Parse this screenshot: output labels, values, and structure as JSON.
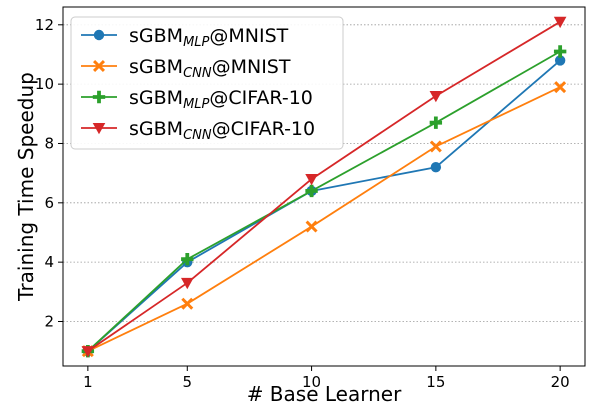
{
  "chart_data": {
    "type": "line",
    "xlabel": "# Base Learner",
    "ylabel": "Training Time Speedup",
    "x": [
      1,
      5,
      10,
      15,
      20
    ],
    "xticks": [
      1,
      5,
      10,
      15,
      20
    ],
    "yticks": [
      2,
      4,
      6,
      8,
      10,
      12
    ],
    "xlim": [
      0,
      21
    ],
    "ylim": [
      0.5,
      12.6
    ],
    "grid": true,
    "legend_position": "top-left",
    "series": [
      {
        "name": "sGBM_MLP@MNIST",
        "name_parts": {
          "prefix": "sGBM",
          "sub": "MLP",
          "suffix": "@MNIST"
        },
        "color": "#1f77b4",
        "marker": "circle",
        "values": [
          1.0,
          4.0,
          6.4,
          7.2,
          10.8
        ]
      },
      {
        "name": "sGBM_CNN@MNIST",
        "name_parts": {
          "prefix": "sGBM",
          "sub": "CNN",
          "suffix": "@MNIST"
        },
        "color": "#ff7f0e",
        "marker": "x",
        "values": [
          1.0,
          2.6,
          5.2,
          7.9,
          9.9
        ]
      },
      {
        "name": "sGBM_MLP@CIFAR-10",
        "name_parts": {
          "prefix": "sGBM",
          "sub": "MLP",
          "suffix": "@CIFAR-10"
        },
        "color": "#2ca02c",
        "marker": "plus",
        "values": [
          1.0,
          4.1,
          6.4,
          8.7,
          11.1
        ]
      },
      {
        "name": "sGBM_CNN@CIFAR-10",
        "name_parts": {
          "prefix": "sGBM",
          "sub": "CNN",
          "suffix": "@CIFAR-10"
        },
        "color": "#d62728",
        "marker": "triangle-down",
        "values": [
          1.0,
          3.3,
          6.8,
          9.6,
          12.1
        ]
      }
    ]
  }
}
